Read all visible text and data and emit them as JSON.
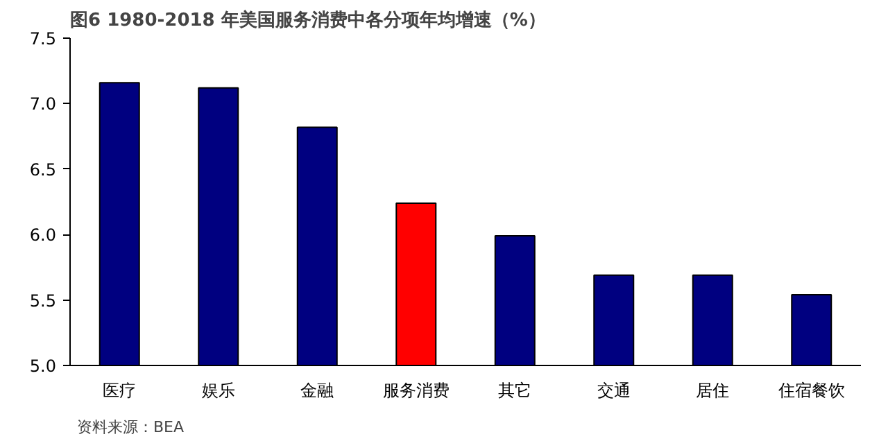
{
  "chart_data": {
    "type": "bar",
    "title": "图6 1980-2018 年美国服务消费中各分项年均增速（%）",
    "categories": [
      "医疗",
      "娱乐",
      "金融",
      "服务消费",
      "其它",
      "交通",
      "居住",
      "住宿餐饮"
    ],
    "values": [
      7.16,
      7.12,
      6.82,
      6.24,
      5.99,
      5.69,
      5.69,
      5.54
    ],
    "colors": [
      "#000080",
      "#000080",
      "#000080",
      "#ff0000",
      "#000080",
      "#000080",
      "#000080",
      "#000080"
    ],
    "ylim": [
      5.0,
      7.5
    ],
    "yticks": [
      {
        "value": 5,
        "label": "5.0"
      },
      5.5,
      {
        "value": 6,
        "label": "6.0"
      },
      6.5,
      {
        "value": 7,
        "label": "7.0"
      },
      7.5
    ],
    "grid": false,
    "annotations": [
      "资料来源：BEA"
    ]
  }
}
